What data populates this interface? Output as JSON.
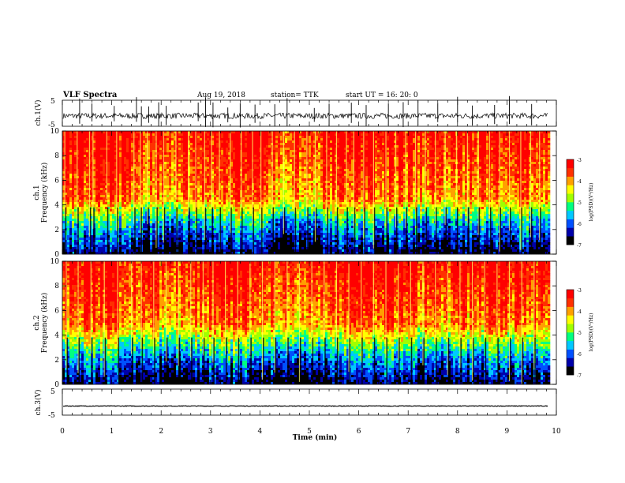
{
  "header": {
    "title": "VLF Spectra",
    "date": "Aug 19, 2018",
    "station": "station= TTK",
    "start": "start UT =  16: 20: 0"
  },
  "colors": {
    "spectrogram_scale": [
      "#000000",
      "#0000aa",
      "#0050ff",
      "#00c8ff",
      "#00ff80",
      "#a0ff00",
      "#ffff00",
      "#ffa000",
      "#ff3000",
      "#ff0000"
    ]
  },
  "chart_data": [
    {
      "type": "line",
      "name": "ch1-waveform",
      "ylabel": "ch.1(V)",
      "ylim": [
        -5,
        5
      ],
      "yticks": [
        "5",
        "-5"
      ],
      "x_units": "min",
      "xlim": [
        0,
        10
      ],
      "signal_end": 9.83,
      "level_approx": -1,
      "spike_positions_min": [
        0.35,
        0.6,
        1.05,
        1.5,
        1.6,
        1.75,
        1.95,
        2.1,
        2.75,
        2.9,
        3.05,
        3.35,
        3.6,
        3.9,
        4.3,
        4.55,
        5.1,
        5.4,
        5.85,
        6.15,
        6.6,
        6.9,
        7.2,
        7.6,
        8.0,
        8.3,
        8.75,
        9.05,
        9.5
      ]
    },
    {
      "type": "heatmap",
      "name": "ch1-spectrogram",
      "ylabel": "ch.1\nFrequency (kHz)",
      "ylabel_line1": "ch.1",
      "ylabel_line2": "Frequency (kHz)",
      "ylim": [
        0,
        10
      ],
      "yticks": [
        "0",
        "2",
        "4",
        "6",
        "8",
        "10"
      ],
      "xlim": [
        0,
        10
      ],
      "signal_end": 9.83,
      "colorbar": {
        "label": "log(PSD)(V²/Hz)",
        "range": [
          -7,
          -3
        ],
        "ticks": [
          "-3",
          "-4",
          "-5",
          "-6",
          "-7"
        ]
      },
      "band_transition_kHz": 4.5,
      "impulsive_lines_min": [
        0.05,
        0.3,
        0.55,
        0.62,
        0.9,
        1.1,
        1.45,
        1.58,
        1.72,
        1.9,
        2.05,
        2.3,
        2.55,
        2.7,
        2.88,
        3.02,
        3.18,
        3.4,
        3.62,
        3.85,
        4.02,
        4.25,
        4.48,
        4.7,
        4.95,
        5.12,
        5.35,
        5.55,
        5.75,
        5.9,
        6.1,
        6.3,
        6.55,
        6.75,
        6.95,
        7.15,
        7.35,
        7.55,
        7.75,
        7.98,
        8.2,
        8.42,
        8.65,
        8.85,
        9.05,
        9.28,
        9.48,
        9.66
      ]
    },
    {
      "type": "heatmap",
      "name": "ch2-spectrogram",
      "ylabel": "ch.2\nFrequency (kHz)",
      "ylabel_line1": "ch.2",
      "ylabel_line2": "Frequency (kHz)",
      "ylim": [
        0,
        10
      ],
      "yticks": [
        "0",
        "2",
        "4",
        "6",
        "8",
        "10"
      ],
      "xlim": [
        0,
        10
      ],
      "signal_end": 9.83,
      "colorbar": {
        "label": "log(PSD)(V²/Hz)",
        "range": [
          -7,
          -3
        ],
        "ticks": [
          "-3",
          "-4",
          "-5",
          "-6",
          "-7"
        ]
      },
      "band_transition_kHz": 4.8,
      "impulsive_lines_min": [
        0.08,
        0.32,
        0.58,
        0.85,
        1.12,
        1.4,
        1.6,
        1.85,
        2.1,
        2.35,
        2.6,
        2.85,
        3.05,
        3.3,
        3.55,
        3.8,
        4.05,
        4.3,
        4.55,
        4.8,
        5.05,
        5.3,
        5.55,
        5.8,
        6.05,
        6.3,
        6.55,
        6.8,
        7.05,
        7.3,
        7.55,
        7.8,
        8.05,
        8.3,
        8.55,
        8.8,
        9.05,
        9.3,
        9.55
      ]
    },
    {
      "type": "line",
      "name": "ch3-waveform",
      "ylabel": "ch.3(V)",
      "ylim": [
        -5,
        5
      ],
      "yticks": [
        "5",
        "-5"
      ],
      "xlim": [
        0,
        10
      ],
      "signal_end": 9.83,
      "level": -1.5,
      "xlabel": "Time  (min)",
      "xticks": [
        "0",
        "1",
        "2",
        "3",
        "4",
        "5",
        "6",
        "7",
        "8",
        "9",
        "10"
      ]
    }
  ]
}
